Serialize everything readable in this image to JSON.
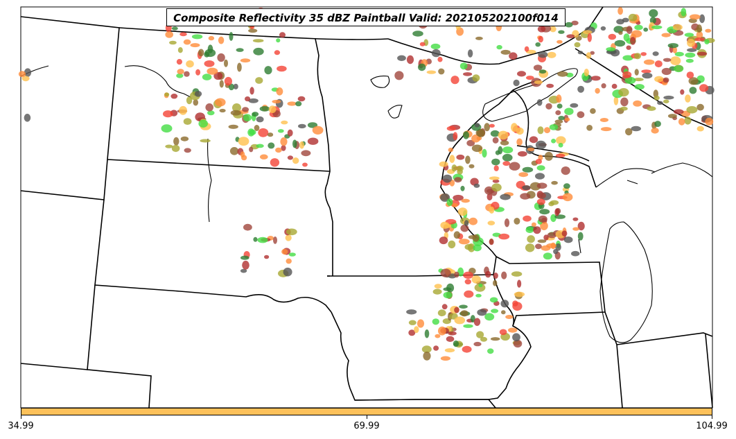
{
  "title": "Composite Reflectivity 35 dBZ Paintball Valid: 202105202100f014",
  "colorbar": {
    "color": "#fdc15a",
    "ticks": [
      "34.99",
      "69.99",
      "104.99"
    ]
  },
  "paintball_colors": [
    "#f44336",
    "#ff8c3a",
    "#ffc04d",
    "#a8a832",
    "#8b6a2c",
    "#a0463c",
    "#2e7d32",
    "#44dd44",
    "#555555",
    "#b03030"
  ]
}
